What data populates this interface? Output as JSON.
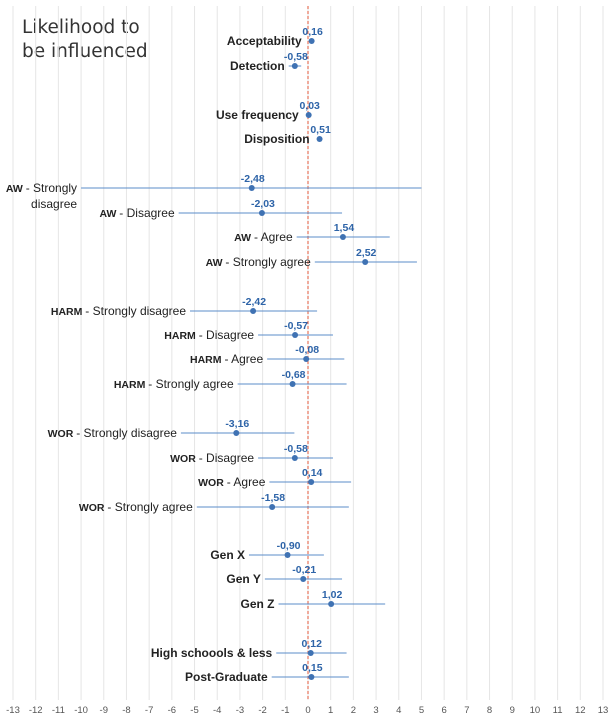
{
  "chart_data": {
    "type": "forest",
    "title_lines": [
      "Likelihood to",
      "be influenced"
    ],
    "xlim": [
      -13,
      13
    ],
    "xticks": [
      -13,
      -12,
      -11,
      -10,
      -9,
      -8,
      -7,
      -6,
      -5,
      -4,
      -3,
      -2,
      -1,
      0,
      1,
      2,
      3,
      4,
      5,
      6,
      7,
      8,
      9,
      10,
      11,
      12,
      13
    ],
    "grid": "vertical",
    "reference_line": 0,
    "colors": {
      "marker": "#3f72b3",
      "whisker": "#5b8cc9",
      "value_label": "#2e64a8",
      "reference": "#e0573a",
      "grid": "#e6e6e6",
      "label": "#222222",
      "axis_text": "#555555"
    },
    "rows": [
      {
        "prefix": "",
        "label": "Acceptability",
        "bold": true,
        "value": 0.16,
        "low": null,
        "high": null,
        "value_text": "0,16"
      },
      {
        "prefix": "",
        "label": "Detection",
        "bold": true,
        "value": -0.58,
        "low": -0.85,
        "high": -0.3,
        "value_text": "-0,58"
      },
      {
        "prefix": "",
        "label": "Use frequency",
        "bold": true,
        "value": 0.03,
        "low": null,
        "high": null,
        "value_text": "0,03"
      },
      {
        "prefix": "",
        "label": "Disposition",
        "bold": true,
        "value": 0.51,
        "low": null,
        "high": null,
        "value_text": "0,51"
      },
      {
        "prefix": "AW",
        "label": "- Strongly",
        "label2": "disagree",
        "bold": false,
        "value": -2.48,
        "low": -10.0,
        "high": 5.0,
        "value_text": "-2,48"
      },
      {
        "prefix": "AW",
        "label": "- Disagree",
        "bold": false,
        "value": -2.03,
        "low": -5.7,
        "high": 1.5,
        "value_text": "-2,03"
      },
      {
        "prefix": "AW",
        "label": "- Agree",
        "bold": false,
        "value": 1.54,
        "low": -0.5,
        "high": 3.6,
        "value_text": "1,54"
      },
      {
        "prefix": "AW",
        "label": "- Strongly agree",
        "bold": false,
        "value": 2.52,
        "low": 0.3,
        "high": 4.8,
        "value_text": "2,52"
      },
      {
        "prefix": "HARM",
        "label": "- Strongly disagree",
        "bold": false,
        "value": -2.42,
        "low": -5.2,
        "high": 0.4,
        "value_text": "-2,42"
      },
      {
        "prefix": "HARM",
        "label": "- Disagree",
        "bold": false,
        "value": -0.57,
        "low": -2.2,
        "high": 1.1,
        "value_text": "-0,57"
      },
      {
        "prefix": "HARM",
        "label": "- Agree",
        "bold": false,
        "value": -0.08,
        "low": -1.8,
        "high": 1.6,
        "value_text": "-0,08"
      },
      {
        "prefix": "HARM",
        "label": "- Strongly agree",
        "bold": false,
        "value": -0.68,
        "low": -3.1,
        "high": 1.7,
        "value_text": "-0,68"
      },
      {
        "prefix": "WOR",
        "label": "- Strongly disagree",
        "bold": false,
        "value": -3.16,
        "low": -5.6,
        "high": -0.6,
        "value_text": "-3,16"
      },
      {
        "prefix": "WOR",
        "label": "- Disagree",
        "bold": false,
        "value": -0.58,
        "low": -2.2,
        "high": 1.1,
        "value_text": "-0,58"
      },
      {
        "prefix": "WOR",
        "label": "- Agree",
        "bold": false,
        "value": 0.14,
        "low": -1.7,
        "high": 1.9,
        "value_text": "0,14"
      },
      {
        "prefix": "WOR",
        "label": "- Strongly agree",
        "bold": false,
        "value": -1.58,
        "low": -4.9,
        "high": 1.8,
        "value_text": "-1,58"
      },
      {
        "prefix": "",
        "label": "Gen X",
        "bold": true,
        "value": -0.9,
        "low": -2.6,
        "high": 0.7,
        "value_text": "-0,90"
      },
      {
        "prefix": "",
        "label": "Gen Y",
        "bold": true,
        "value": -0.21,
        "low": -1.9,
        "high": 1.5,
        "value_text": "-0,21"
      },
      {
        "prefix": "",
        "label": "Gen Z",
        "bold": true,
        "value": 1.02,
        "low": -1.3,
        "high": 3.4,
        "value_text": "1,02"
      },
      {
        "prefix": "",
        "label": "High schoools & less",
        "bold": true,
        "value": 0.12,
        "low": -1.4,
        "high": 1.7,
        "value_text": "0,12"
      },
      {
        "prefix": "",
        "label": "Post-Graduate",
        "bold": true,
        "value": 0.15,
        "low": -1.6,
        "high": 1.8,
        "value_text": "0,15"
      }
    ]
  }
}
